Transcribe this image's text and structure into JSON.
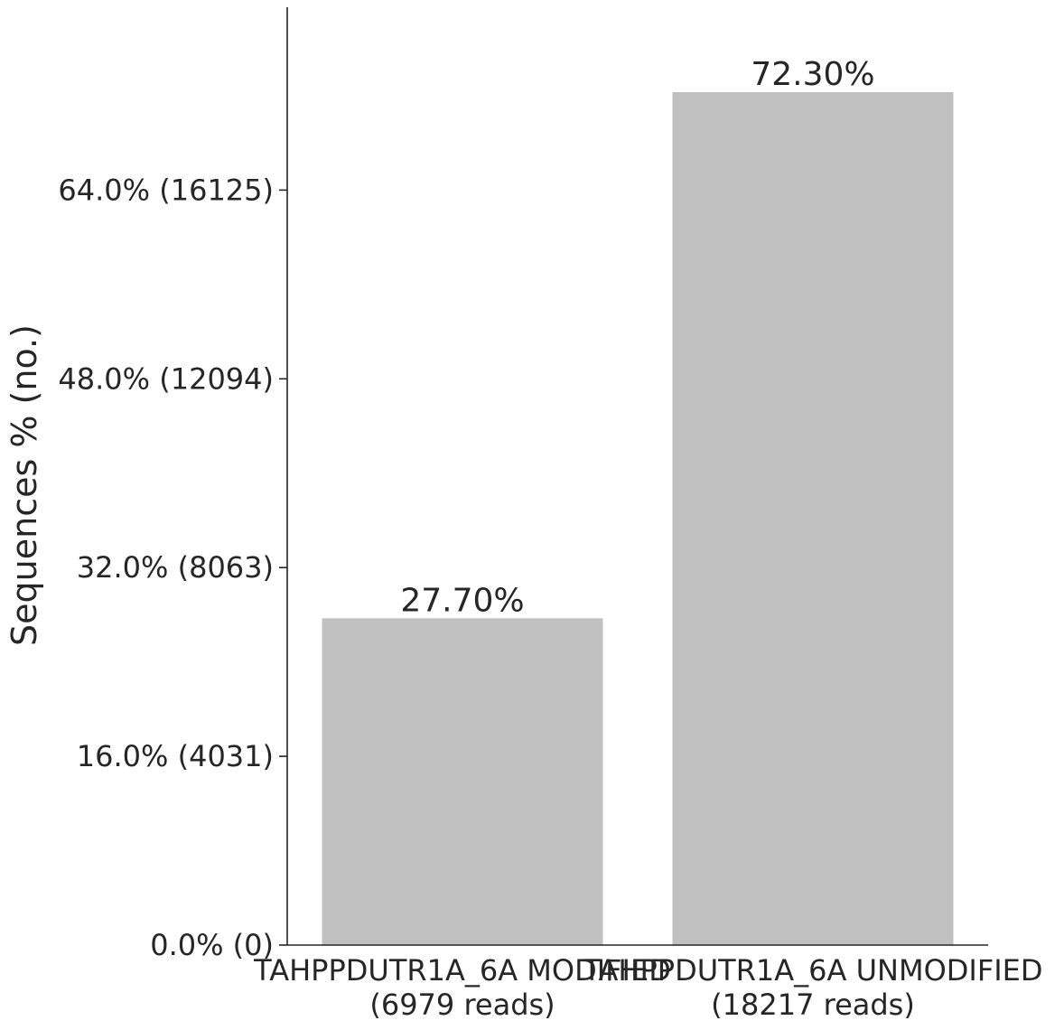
{
  "chart_data": {
    "type": "bar",
    "title": "",
    "xlabel": "",
    "ylabel": "Sequences % (no.)",
    "ylim": [
      0,
      79.5
    ],
    "grid": false,
    "bar_color": "#c0c0c0",
    "axis_color": "#262626",
    "categories": [
      {
        "name": "TAHPPDUTR1A_6A MODIFIED",
        "reads": "(6979 reads)"
      },
      {
        "name": "TAHPPDUTR1A_6A UNMODIFIED",
        "reads": "(18217 reads)"
      }
    ],
    "values": [
      27.7,
      72.3
    ],
    "value_labels": [
      "27.70%",
      "72.30%"
    ],
    "yticks": [
      {
        "value": 0,
        "label": "0.0% (0)"
      },
      {
        "value": 16,
        "label": "16.0% (4031)"
      },
      {
        "value": 32,
        "label": "32.0% (8063)"
      },
      {
        "value": 48,
        "label": "48.0% (12094)"
      },
      {
        "value": 64,
        "label": "64.0% (16125)"
      }
    ]
  }
}
